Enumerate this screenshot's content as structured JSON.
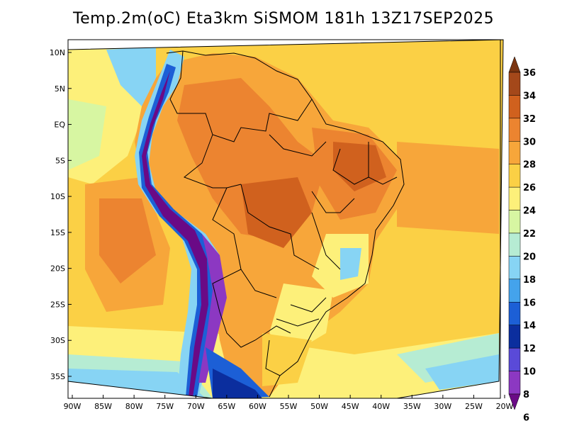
{
  "title": "Temp.2m(oC) Eta3km SiSMOM 181h 13Z17SEP2025",
  "map": {
    "lat_labels": [
      "10N",
      "5N",
      "EQ",
      "5S",
      "10S",
      "15S",
      "20S",
      "25S",
      "30S",
      "35S"
    ],
    "lat_values": [
      10,
      5,
      0,
      -5,
      -10,
      -15,
      -20,
      -25,
      -30,
      -35
    ],
    "lon_labels": [
      "90W",
      "85W",
      "80W",
      "75W",
      "70W",
      "65W",
      "60W",
      "55W",
      "50W",
      "45W",
      "40W",
      "35W",
      "30W",
      "25W",
      "20W"
    ],
    "lon_values": [
      -90,
      -85,
      -80,
      -75,
      -70,
      -65,
      -60,
      -55,
      -50,
      -45,
      -40,
      -35,
      -30,
      -25,
      -20
    ]
  },
  "colorbar": {
    "labels": [
      "36",
      "34",
      "32",
      "30",
      "28",
      "26",
      "24",
      "22",
      "20",
      "18",
      "16",
      "14",
      "12",
      "10",
      "8",
      "6"
    ],
    "colors": [
      "#7a3410",
      "#a4481a",
      "#d0611e",
      "#ec8430",
      "#f7a63a",
      "#fbd045",
      "#fdf07a",
      "#d7f6a2",
      "#b6ecd3",
      "#87d4f4",
      "#44a3ec",
      "#1c5fd6",
      "#0b2e9e",
      "#5a4ad8",
      "#8c38c2",
      "#6a0a86"
    ]
  }
}
